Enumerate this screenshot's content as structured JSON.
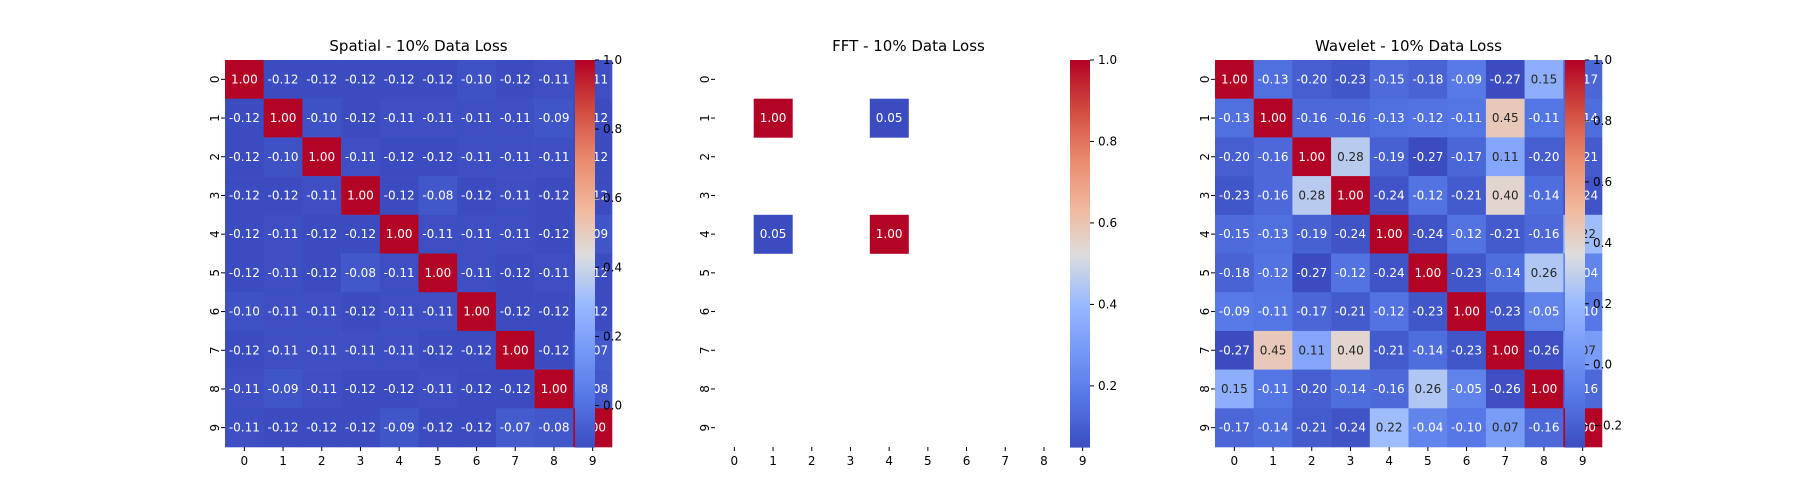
{
  "chart_data": [
    {
      "type": "heatmap",
      "title": "Spatial - 10% Data Loss",
      "xticks": [
        "0",
        "1",
        "2",
        "3",
        "4",
        "5",
        "6",
        "7",
        "8",
        "9"
      ],
      "yticks": [
        "0",
        "1",
        "2",
        "3",
        "4",
        "5",
        "6",
        "7",
        "8",
        "9"
      ],
      "colormap": "coolwarm",
      "vmin": -0.12,
      "vmax": 1.0,
      "colorbar_ticks": [
        "0.0",
        "0.2",
        "0.4",
        "0.6",
        "0.8",
        "1.0"
      ],
      "colorbar_tick_values": [
        0.0,
        0.2,
        0.4,
        0.6,
        0.8,
        1.0
      ],
      "values": [
        [
          1.0,
          -0.12,
          -0.12,
          -0.12,
          -0.12,
          -0.12,
          -0.1,
          -0.12,
          -0.11,
          -0.11
        ],
        [
          -0.12,
          1.0,
          -0.1,
          -0.12,
          -0.11,
          -0.11,
          -0.11,
          -0.11,
          -0.09,
          -0.12
        ],
        [
          -0.12,
          -0.1,
          1.0,
          -0.11,
          -0.12,
          -0.12,
          -0.11,
          -0.11,
          -0.11,
          -0.12
        ],
        [
          -0.12,
          -0.12,
          -0.11,
          1.0,
          -0.12,
          -0.08,
          -0.12,
          -0.11,
          -0.12,
          -0.12
        ],
        [
          -0.12,
          -0.11,
          -0.12,
          -0.12,
          1.0,
          -0.11,
          -0.11,
          -0.11,
          -0.12,
          -0.09
        ],
        [
          -0.12,
          -0.11,
          -0.12,
          -0.08,
          -0.11,
          1.0,
          -0.11,
          -0.12,
          -0.11,
          -0.12
        ],
        [
          -0.1,
          -0.11,
          -0.11,
          -0.12,
          -0.11,
          -0.11,
          1.0,
          -0.12,
          -0.12,
          -0.12
        ],
        [
          -0.12,
          -0.11,
          -0.11,
          -0.11,
          -0.11,
          -0.12,
          -0.12,
          1.0,
          -0.12,
          -0.07
        ],
        [
          -0.11,
          -0.09,
          -0.11,
          -0.12,
          -0.12,
          -0.11,
          -0.12,
          -0.12,
          1.0,
          -0.08
        ],
        [
          -0.11,
          -0.12,
          -0.12,
          -0.12,
          -0.09,
          -0.12,
          -0.12,
          -0.07,
          -0.08,
          1.0
        ]
      ]
    },
    {
      "type": "heatmap",
      "title": "FFT - 10% Data Loss",
      "xticks": [
        "0",
        "1",
        "2",
        "3",
        "4",
        "5",
        "6",
        "7",
        "8",
        "9"
      ],
      "yticks": [
        "0",
        "1",
        "2",
        "3",
        "4",
        "5",
        "6",
        "7",
        "8",
        "9"
      ],
      "colormap": "coolwarm",
      "vmin": 0.05,
      "vmax": 1.0,
      "colorbar_ticks": [
        "0.2",
        "0.4",
        "0.6",
        "0.8",
        "1.0"
      ],
      "colorbar_tick_values": [
        0.2,
        0.4,
        0.6,
        0.8,
        1.0
      ],
      "values": [
        [
          null,
          null,
          null,
          null,
          null,
          null,
          null,
          null,
          null,
          null
        ],
        [
          null,
          1.0,
          null,
          null,
          0.05,
          null,
          null,
          null,
          null,
          null
        ],
        [
          null,
          null,
          null,
          null,
          null,
          null,
          null,
          null,
          null,
          null
        ],
        [
          null,
          null,
          null,
          null,
          null,
          null,
          null,
          null,
          null,
          null
        ],
        [
          null,
          0.05,
          null,
          null,
          1.0,
          null,
          null,
          null,
          null,
          null
        ],
        [
          null,
          null,
          null,
          null,
          null,
          null,
          null,
          null,
          null,
          null
        ],
        [
          null,
          null,
          null,
          null,
          null,
          null,
          null,
          null,
          null,
          null
        ],
        [
          null,
          null,
          null,
          null,
          null,
          null,
          null,
          null,
          null,
          null
        ],
        [
          null,
          null,
          null,
          null,
          null,
          null,
          null,
          null,
          null,
          null
        ],
        [
          null,
          null,
          null,
          null,
          null,
          null,
          null,
          null,
          null,
          null
        ]
      ]
    },
    {
      "type": "heatmap",
      "title": "Wavelet - 10% Data Loss",
      "xticks": [
        "0",
        "1",
        "2",
        "3",
        "4",
        "5",
        "6",
        "7",
        "8",
        "9"
      ],
      "yticks": [
        "0",
        "1",
        "2",
        "3",
        "4",
        "5",
        "6",
        "7",
        "8",
        "9"
      ],
      "colormap": "coolwarm",
      "vmin": -0.27,
      "vmax": 1.0,
      "colorbar_ticks": [
        "−0.2",
        "0.0",
        "0.2",
        "0.4",
        "0.6",
        "0.8",
        "1.0"
      ],
      "colorbar_tick_values": [
        -0.2,
        0.0,
        0.2,
        0.4,
        0.6,
        0.8,
        1.0
      ],
      "values": [
        [
          1.0,
          -0.13,
          -0.2,
          -0.23,
          -0.15,
          -0.18,
          -0.09,
          -0.27,
          0.15,
          -0.17
        ],
        [
          -0.13,
          1.0,
          -0.16,
          -0.16,
          -0.13,
          -0.12,
          -0.11,
          0.45,
          -0.11,
          -0.14
        ],
        [
          -0.2,
          -0.16,
          1.0,
          0.28,
          -0.19,
          -0.27,
          -0.17,
          0.11,
          -0.2,
          -0.21
        ],
        [
          -0.23,
          -0.16,
          0.28,
          1.0,
          -0.24,
          -0.12,
          -0.21,
          0.4,
          -0.14,
          -0.24
        ],
        [
          -0.15,
          -0.13,
          -0.19,
          -0.24,
          1.0,
          -0.24,
          -0.12,
          -0.21,
          -0.16,
          0.22
        ],
        [
          -0.18,
          -0.12,
          -0.27,
          -0.12,
          -0.24,
          1.0,
          -0.23,
          -0.14,
          0.26,
          -0.04
        ],
        [
          -0.09,
          -0.11,
          -0.17,
          -0.21,
          -0.12,
          -0.23,
          1.0,
          -0.23,
          -0.05,
          -0.1
        ],
        [
          -0.27,
          0.45,
          0.11,
          0.4,
          -0.21,
          -0.14,
          -0.23,
          1.0,
          -0.26,
          0.07
        ],
        [
          0.15,
          -0.11,
          -0.2,
          -0.14,
          -0.16,
          0.26,
          -0.05,
          -0.26,
          1.0,
          -0.16
        ],
        [
          -0.17,
          -0.14,
          -0.21,
          -0.24,
          0.22,
          -0.04,
          -0.1,
          0.07,
          -0.16,
          1.0
        ]
      ]
    }
  ]
}
